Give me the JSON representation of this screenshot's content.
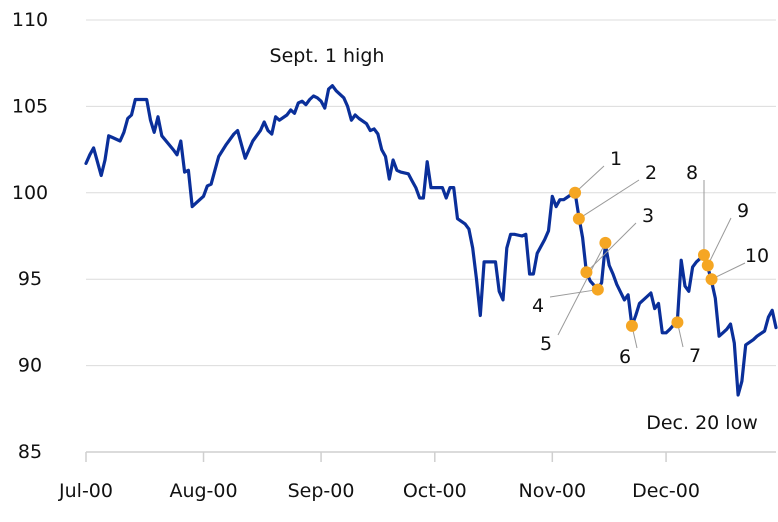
{
  "chart_data": {
    "type": "line",
    "title": "",
    "xlabel": "",
    "ylabel": "",
    "xlim": [
      "2000-07-01",
      "2000-12-30"
    ],
    "ylim": [
      85,
      110
    ],
    "yticks": [
      85,
      90,
      95,
      100,
      105,
      110
    ],
    "xticks": [
      {
        "label": "Jul-00",
        "date": "2000-07-01"
      },
      {
        "label": "Aug-00",
        "date": "2000-08-01"
      },
      {
        "label": "Sep-00",
        "date": "2000-09-01"
      },
      {
        "label": "Oct-00",
        "date": "2000-10-01"
      },
      {
        "label": "Nov-00",
        "date": "2000-11-01"
      },
      {
        "label": "Dec-00",
        "date": "2000-12-01"
      }
    ],
    "grid": "horizontal",
    "colors": {
      "line": "#0a2f9a",
      "marker": "#f5a623",
      "grid": "#dcdcdc",
      "leader": "#9a9a9a"
    },
    "series": [
      {
        "points": [
          [
            "2000-07-01",
            101.7
          ],
          [
            "2000-07-02",
            102.2
          ],
          [
            "2000-07-03",
            102.6
          ],
          [
            "2000-07-04",
            101.8
          ],
          [
            "2000-07-05",
            101.0
          ],
          [
            "2000-07-06",
            101.9
          ],
          [
            "2000-07-07",
            103.3
          ],
          [
            "2000-07-08",
            103.2
          ],
          [
            "2000-07-10",
            103.0
          ],
          [
            "2000-07-11",
            103.5
          ],
          [
            "2000-07-12",
            104.3
          ],
          [
            "2000-07-13",
            104.5
          ],
          [
            "2000-07-14",
            105.4
          ],
          [
            "2000-07-17",
            105.4
          ],
          [
            "2000-07-18",
            104.2
          ],
          [
            "2000-07-19",
            103.5
          ],
          [
            "2000-07-20",
            104.4
          ],
          [
            "2000-07-21",
            103.3
          ],
          [
            "2000-07-24",
            102.5
          ],
          [
            "2000-07-25",
            102.2
          ],
          [
            "2000-07-26",
            103.0
          ],
          [
            "2000-07-27",
            101.2
          ],
          [
            "2000-07-28",
            101.3
          ],
          [
            "2000-07-29",
            99.2
          ],
          [
            "2000-07-31",
            99.6
          ],
          [
            "2000-08-01",
            99.8
          ],
          [
            "2000-08-02",
            100.4
          ],
          [
            "2000-08-03",
            100.5
          ],
          [
            "2000-08-04",
            101.3
          ],
          [
            "2000-08-05",
            102.1
          ],
          [
            "2000-08-07",
            102.8
          ],
          [
            "2000-08-09",
            103.4
          ],
          [
            "2000-08-10",
            103.6
          ],
          [
            "2000-08-11",
            102.8
          ],
          [
            "2000-08-12",
            102.0
          ],
          [
            "2000-08-14",
            103.0
          ],
          [
            "2000-08-16",
            103.6
          ],
          [
            "2000-08-17",
            104.1
          ],
          [
            "2000-08-18",
            103.6
          ],
          [
            "2000-08-19",
            103.4
          ],
          [
            "2000-08-20",
            104.4
          ],
          [
            "2000-08-21",
            104.2
          ],
          [
            "2000-08-23",
            104.5
          ],
          [
            "2000-08-24",
            104.8
          ],
          [
            "2000-08-25",
            104.6
          ],
          [
            "2000-08-26",
            105.2
          ],
          [
            "2000-08-27",
            105.3
          ],
          [
            "2000-08-28",
            105.1
          ],
          [
            "2000-08-29",
            105.4
          ],
          [
            "2000-08-30",
            105.6
          ],
          [
            "2000-08-31",
            105.5
          ],
          [
            "2000-09-01",
            105.3
          ],
          [
            "2000-09-02",
            104.9
          ],
          [
            "2000-09-03",
            106.0
          ],
          [
            "2000-09-04",
            106.2
          ],
          [
            "2000-09-05",
            105.9
          ],
          [
            "2000-09-07",
            105.5
          ],
          [
            "2000-09-08",
            105.0
          ],
          [
            "2000-09-09",
            104.2
          ],
          [
            "2000-09-10",
            104.5
          ],
          [
            "2000-09-11",
            104.3
          ],
          [
            "2000-09-13",
            104.0
          ],
          [
            "2000-09-14",
            103.6
          ],
          [
            "2000-09-15",
            103.7
          ],
          [
            "2000-09-16",
            103.4
          ],
          [
            "2000-09-17",
            102.5
          ],
          [
            "2000-09-18",
            102.1
          ],
          [
            "2000-09-19",
            100.8
          ],
          [
            "2000-09-20",
            101.9
          ],
          [
            "2000-09-21",
            101.3
          ],
          [
            "2000-09-22",
            101.2
          ],
          [
            "2000-09-24",
            101.1
          ],
          [
            "2000-09-25",
            100.7
          ],
          [
            "2000-09-26",
            100.3
          ],
          [
            "2000-09-27",
            99.7
          ],
          [
            "2000-09-28",
            99.7
          ],
          [
            "2000-09-29",
            101.8
          ],
          [
            "2000-09-30",
            100.3
          ],
          [
            "2000-10-02",
            100.3
          ],
          [
            "2000-10-03",
            100.3
          ],
          [
            "2000-10-04",
            99.7
          ],
          [
            "2000-10-05",
            100.3
          ],
          [
            "2000-10-06",
            100.3
          ],
          [
            "2000-10-07",
            98.5
          ],
          [
            "2000-10-09",
            98.2
          ],
          [
            "2000-10-10",
            97.9
          ],
          [
            "2000-10-11",
            96.8
          ],
          [
            "2000-10-12",
            95.0
          ],
          [
            "2000-10-13",
            92.9
          ],
          [
            "2000-10-14",
            96.0
          ],
          [
            "2000-10-16",
            96.0
          ],
          [
            "2000-10-17",
            96.0
          ],
          [
            "2000-10-18",
            94.3
          ],
          [
            "2000-10-19",
            93.8
          ],
          [
            "2000-10-20",
            96.8
          ],
          [
            "2000-10-21",
            97.6
          ],
          [
            "2000-10-22",
            97.6
          ],
          [
            "2000-10-24",
            97.5
          ],
          [
            "2000-10-25",
            97.6
          ],
          [
            "2000-10-26",
            95.3
          ],
          [
            "2000-10-27",
            95.3
          ],
          [
            "2000-10-28",
            96.5
          ],
          [
            "2000-10-30",
            97.3
          ],
          [
            "2000-10-31",
            97.8
          ],
          [
            "2000-11-01",
            99.8
          ],
          [
            "2000-11-02",
            99.2
          ],
          [
            "2000-11-03",
            99.6
          ],
          [
            "2000-11-04",
            99.6
          ],
          [
            "2000-11-06",
            99.9
          ],
          [
            "2000-11-07",
            100.0
          ],
          [
            "2000-11-08",
            98.6
          ],
          [
            "2000-11-09",
            97.4
          ],
          [
            "2000-11-10",
            95.4
          ],
          [
            "2000-11-11",
            94.9
          ],
          [
            "2000-11-13",
            94.4
          ],
          [
            "2000-11-14",
            94.8
          ],
          [
            "2000-11-15",
            97.0
          ],
          [
            "2000-11-16",
            95.8
          ],
          [
            "2000-11-17",
            95.3
          ],
          [
            "2000-11-18",
            94.7
          ],
          [
            "2000-11-20",
            93.8
          ],
          [
            "2000-11-21",
            94.1
          ],
          [
            "2000-11-22",
            92.3
          ],
          [
            "2000-11-23",
            92.9
          ],
          [
            "2000-11-24",
            93.6
          ],
          [
            "2000-11-26",
            94.0
          ],
          [
            "2000-11-27",
            94.2
          ],
          [
            "2000-11-28",
            93.3
          ],
          [
            "2000-11-29",
            93.6
          ],
          [
            "2000-11-30",
            91.9
          ],
          [
            "2000-12-01",
            91.9
          ],
          [
            "2000-12-02",
            92.1
          ],
          [
            "2000-12-04",
            92.6
          ],
          [
            "2000-12-05",
            96.1
          ],
          [
            "2000-12-06",
            94.6
          ],
          [
            "2000-12-07",
            94.3
          ],
          [
            "2000-12-08",
            95.7
          ],
          [
            "2000-12-09",
            96.0
          ],
          [
            "2000-12-11",
            96.4
          ],
          [
            "2000-12-12",
            95.7
          ],
          [
            "2000-12-13",
            94.9
          ],
          [
            "2000-12-14",
            93.9
          ],
          [
            "2000-12-15",
            91.7
          ],
          [
            "2000-12-16",
            91.9
          ],
          [
            "2000-12-17",
            92.1
          ],
          [
            "2000-12-18",
            92.4
          ],
          [
            "2000-12-19",
            91.3
          ],
          [
            "2000-12-20",
            88.3
          ],
          [
            "2000-12-21",
            89.1
          ],
          [
            "2000-12-22",
            91.2
          ],
          [
            "2000-12-24",
            91.5
          ],
          [
            "2000-12-25",
            91.7
          ],
          [
            "2000-12-27",
            92.0
          ],
          [
            "2000-12-28",
            92.8
          ],
          [
            "2000-12-29",
            93.2
          ],
          [
            "2000-12-30",
            92.2
          ]
        ]
      }
    ],
    "markers": [
      {
        "label": "1",
        "date": "2000-11-07",
        "value": 100.0
      },
      {
        "label": "2",
        "date": "2000-11-08",
        "value": 98.5
      },
      {
        "label": "3",
        "date": "2000-11-10",
        "value": 95.4
      },
      {
        "label": "4",
        "date": "2000-11-13",
        "value": 94.4
      },
      {
        "label": "5",
        "date": "2000-11-15",
        "value": 97.1
      },
      {
        "label": "6",
        "date": "2000-11-22",
        "value": 92.3
      },
      {
        "label": "7",
        "date": "2000-12-04",
        "value": 92.5
      },
      {
        "label": "8",
        "date": "2000-12-11",
        "value": 96.4
      },
      {
        "label": "9",
        "date": "2000-12-12",
        "value": 95.8
      },
      {
        "label": "10",
        "date": "2000-12-13",
        "value": 95.0
      }
    ],
    "annotations": [
      {
        "text": "Sept. 1 high"
      },
      {
        "text": "Dec. 20 low"
      }
    ]
  }
}
